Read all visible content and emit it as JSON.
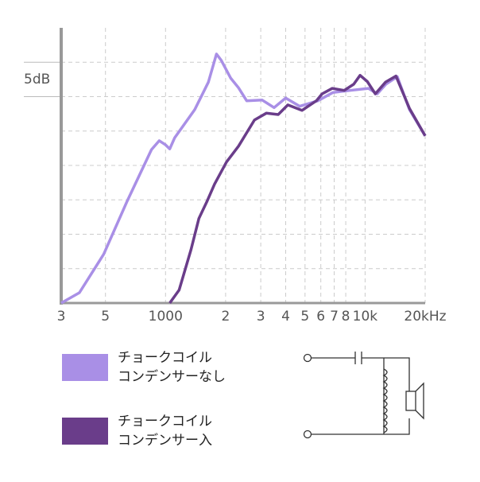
{
  "chart_data": {
    "type": "line",
    "annotation": "5dB",
    "log_x": true,
    "grid": true,
    "xlim": [
      300,
      20000
    ],
    "xticks": [
      {
        "value": 300,
        "label": "3"
      },
      {
        "value": 500,
        "label": "5"
      },
      1000,
      {
        "value": 2000,
        "label": "2"
      },
      {
        "value": 3000,
        "label": "3"
      },
      {
        "value": 4000,
        "label": "4"
      },
      {
        "value": 5000,
        "label": "5"
      },
      {
        "value": 6000,
        "label": "6"
      },
      {
        "value": 7000,
        "label": "7"
      },
      {
        "value": 8000,
        "label": "8"
      },
      {
        "value": 10000,
        "label": "10k"
      },
      {
        "value": 20000,
        "label": "20kHz"
      }
    ],
    "ylim": [
      0,
      40
    ],
    "yticks": [
      0,
      5,
      10,
      15,
      20,
      25,
      30,
      35
    ],
    "series": [
      {
        "name": "チョークコイル\nコンデンサーなし",
        "color": "#a98fe6",
        "x": [
          300,
          370,
          490,
          640,
          850,
          930,
          1000,
          1050,
          1110,
          1400,
          1640,
          1800,
          1900,
          2120,
          2320,
          2550,
          3050,
          3500,
          4000,
          4700,
          5800,
          6900,
          8400,
          10400,
          11500,
          12700,
          14500,
          16700,
          20000
        ],
        "values": [
          0,
          1.5,
          7.1,
          14.7,
          22.3,
          23.6,
          23.0,
          22.4,
          24.0,
          28.1,
          32.1,
          36.2,
          35.3,
          32.7,
          31.3,
          29.4,
          29.5,
          28.4,
          29.8,
          28.6,
          29.4,
          30.6,
          30.9,
          31.2,
          30.4,
          31.8,
          32.9,
          28.1,
          24.3
        ]
      },
      {
        "name": "チョークコイル\nコンデンサー入",
        "color": "#6a3d8a",
        "x": [
          1050,
          1170,
          1340,
          1470,
          1610,
          1760,
          2020,
          2320,
          2790,
          3200,
          3670,
          4100,
          4830,
          5700,
          6090,
          6850,
          7860,
          8770,
          9440,
          10260,
          11250,
          12660,
          14270,
          16680,
          20000
        ],
        "values": [
          0,
          1.9,
          7.7,
          12.3,
          14.7,
          17.3,
          20.5,
          22.8,
          26.6,
          27.6,
          27.4,
          28.8,
          28.0,
          29.4,
          30.4,
          31.2,
          30.9,
          31.8,
          33.1,
          32.2,
          30.4,
          32.1,
          33.0,
          28.3,
          24.3
        ]
      }
    ]
  }
}
